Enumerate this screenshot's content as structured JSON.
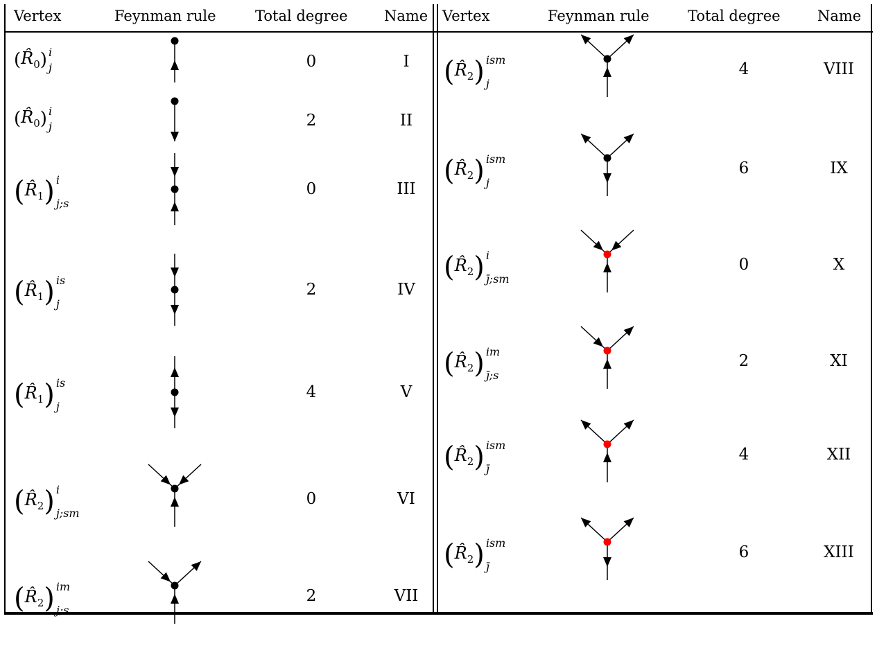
{
  "headers": {
    "left": [
      "Vertex",
      "Feynman rule",
      "Total degree",
      "Name"
    ],
    "right": [
      "Vertex",
      "Feynman rule",
      "Total degree",
      "Name"
    ]
  },
  "left_rows": [
    {
      "vertex": {
        "base": "(R̂0)",
        "sup": "i",
        "sub": "j",
        "paren_style": "small"
      },
      "rule": "line-up-dot-top",
      "degree": "0",
      "name": "I"
    },
    {
      "vertex": {
        "base": "(R̂0)",
        "sup": "i",
        "sub": "j",
        "paren_style": "small"
      },
      "rule": "line-down-dot-top",
      "degree": "2",
      "name": "II"
    },
    {
      "vertex": {
        "base": "(R̂1)",
        "sup": "i",
        "sub": "j;s",
        "paren_style": "large"
      },
      "rule": "down-dot-up",
      "degree": "0",
      "name": "III"
    },
    {
      "vertex": {
        "base": "(R̂1)",
        "sup": "is",
        "sub": "j",
        "paren_style": "large"
      },
      "rule": "down-dot-down",
      "degree": "2",
      "name": "IV"
    },
    {
      "vertex": {
        "base": "(R̂1)",
        "sup": "is",
        "sub": "j",
        "paren_style": "large"
      },
      "rule": "up-dot-down",
      "degree": "4",
      "name": "V"
    },
    {
      "vertex": {
        "base": "(R̂2)",
        "sup": "i",
        "sub": "j;sm",
        "paren_style": "large"
      },
      "rule": "Y-in-in-up-black",
      "degree": "0",
      "name": "VI"
    },
    {
      "vertex": {
        "base": "(R̂2)",
        "sup": "im",
        "sub": "j;s",
        "paren_style": "large"
      },
      "rule": "Y-in-out-up-black",
      "degree": "2",
      "name": "VII"
    }
  ],
  "right_rows": [
    {
      "vertex": {
        "base": "(R̂2)",
        "sup": "ism",
        "sub": "j"
      },
      "rule": "Y-out-out-up-black",
      "degree": "4",
      "name": "VIII"
    },
    {
      "vertex": {
        "base": "(R̂2)",
        "sup": "ism",
        "sub": "j"
      },
      "rule": "Y-out-out-down-black",
      "degree": "6",
      "name": "IX"
    },
    {
      "vertex": {
        "base": "(R̂2)",
        "sup": "i",
        "sub": "j̄;sm"
      },
      "rule": "Y-in-in-up-red",
      "degree": "0",
      "name": "X"
    },
    {
      "vertex": {
        "base": "(R̂2)",
        "sup": "im",
        "sub": "j̄;s"
      },
      "rule": "Y-in-out-up-red",
      "degree": "2",
      "name": "XI"
    },
    {
      "vertex": {
        "base": "(R̂2)",
        "sup": "ism",
        "sub": "j̄"
      },
      "rule": "Y-out-out-up-red",
      "degree": "4",
      "name": "XII"
    },
    {
      "vertex": {
        "base": "(R̂2)",
        "sup": "ism",
        "sub": "j̄"
      },
      "rule": "Y-out-out-down-red",
      "degree": "6",
      "name": "XIII"
    }
  ],
  "colors": {
    "black_vertex": "#000000",
    "red_vertex": "#ff0000"
  }
}
